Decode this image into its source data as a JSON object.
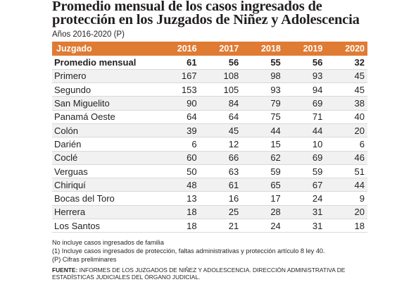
{
  "title_line1": "Promedio mensual de los casos ingresados de",
  "title_line2": "protección en los Juzgados de Niñez y Adolescencia",
  "subtitle": "Años 2016-2020 (P)",
  "table": {
    "headers": [
      "Juzgado",
      "2016",
      "2017",
      "2018",
      "2019",
      "2020"
    ],
    "rows": [
      [
        "Promedio mensual",
        "61",
        "56",
        "55",
        "56",
        "32"
      ],
      [
        "Primero",
        "167",
        "108",
        "98",
        "93",
        "45"
      ],
      [
        "Segundo",
        "153",
        "105",
        "93",
        "94",
        "45"
      ],
      [
        "San Miguelito",
        "90",
        "84",
        "79",
        "69",
        "38"
      ],
      [
        "Panamá Oeste",
        "64",
        "64",
        "75",
        "71",
        "40"
      ],
      [
        "Colón",
        "39",
        "45",
        "44",
        "44",
        "20"
      ],
      [
        "Darién",
        "6",
        "12",
        "15",
        "10",
        "6"
      ],
      [
        "Coclé",
        "60",
        "66",
        "62",
        "69",
        "46"
      ],
      [
        "Verguas",
        "50",
        "63",
        "59",
        "59",
        "51"
      ],
      [
        "Chiriquí",
        "48",
        "61",
        "65",
        "67",
        "44"
      ],
      [
        "Bocas del Toro",
        "13",
        "16",
        "17",
        "24",
        "9"
      ],
      [
        "Herrera",
        "18",
        "25",
        "28",
        "31",
        "20"
      ],
      [
        "Los Santos",
        "18",
        "21",
        "24",
        "31",
        "18"
      ]
    ]
  },
  "notes": [
    "No incluye casos ingresados de familia",
    "(1)  Incluye casos ingresados de protección, faltas administrativas y protección artículo 8 ley 40.",
    "(P) Cifras preliminares"
  ],
  "source_label": "FUENTE:",
  "source_text": " INFORMES DE LOS JUZGADOS DE NIÑEZ Y ADOLESCENCIA. DIRECCIÓN ADMINISTRATIVA DE ESTADÍSTICAS JUDICIALES DEL ÓRGANO JUDICIAL."
}
